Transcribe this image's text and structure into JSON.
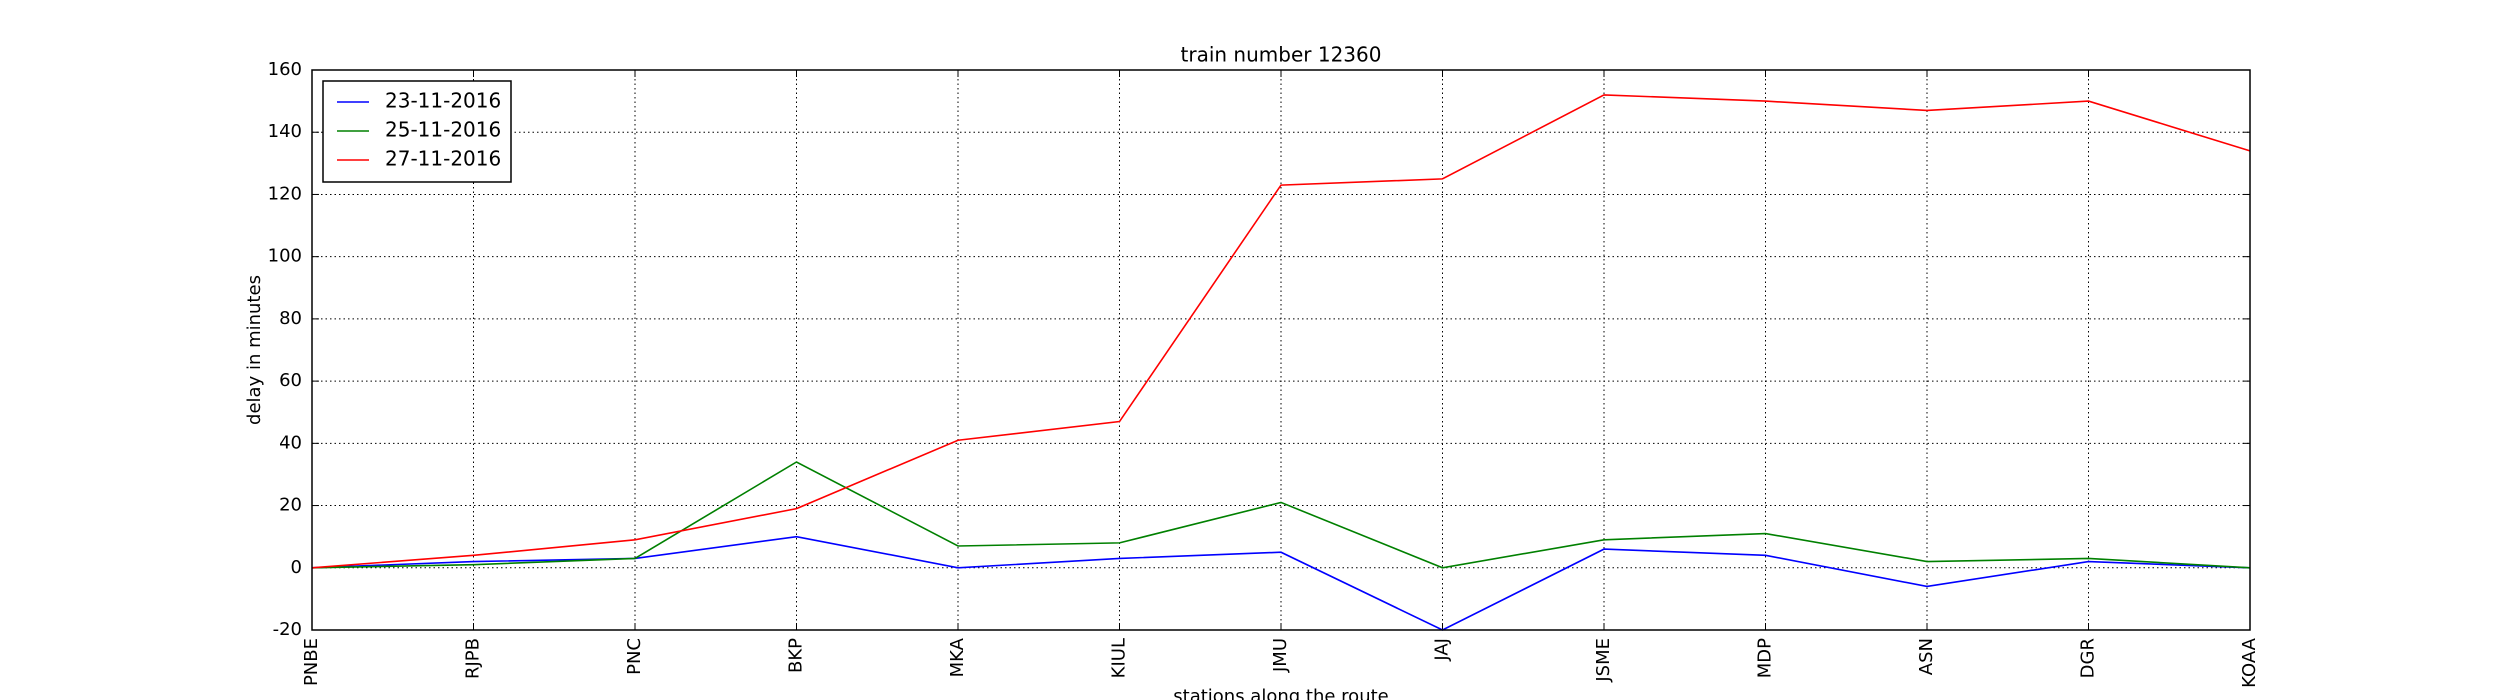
{
  "chart_data": {
    "type": "line",
    "title": "train number 12360",
    "x_label": "stations along the route",
    "y_label": "delay in minutes",
    "categories": [
      "PNBE",
      "RJPB",
      "PNC",
      "BKP",
      "MKA",
      "KIUL",
      "JMU",
      "JAJ",
      "JSME",
      "MDP",
      "ASN",
      "DGR",
      "KOAA"
    ],
    "series": [
      {
        "name": "23-11-2016",
        "color": "#0000ff",
        "values": [
          0,
          2,
          3,
          10,
          0,
          3,
          5,
          -20,
          6,
          4,
          -6,
          2,
          0
        ]
      },
      {
        "name": "25-11-2016",
        "color": "#008000",
        "values": [
          0,
          1,
          3,
          34,
          7,
          8,
          21,
          0,
          9,
          11,
          2,
          3,
          0
        ]
      },
      {
        "name": "27-11-2016",
        "color": "#ff0000",
        "values": [
          0,
          4,
          9,
          19,
          41,
          47,
          123,
          125,
          152,
          150,
          147,
          150,
          134
        ]
      }
    ],
    "ylim": [
      -20,
      160
    ],
    "yticks": [
      -20,
      0,
      20,
      40,
      60,
      80,
      100,
      120,
      140,
      160
    ],
    "grid": true,
    "legend": "upper-left"
  }
}
